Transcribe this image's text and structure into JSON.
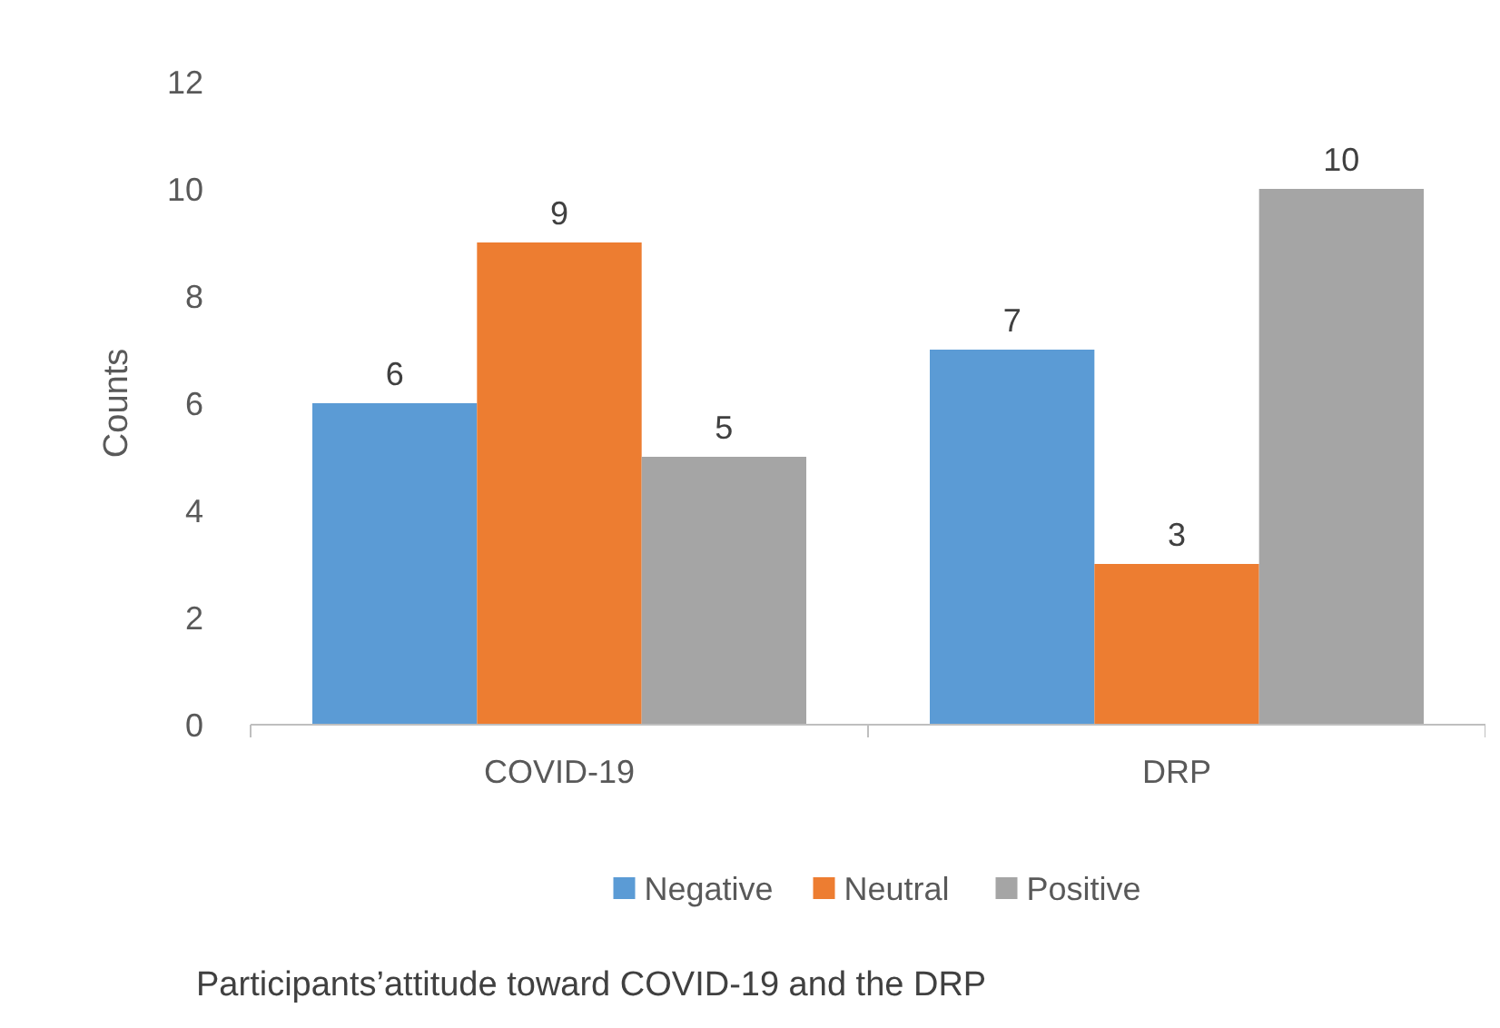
{
  "chart_data": {
    "type": "bar",
    "ylabel": "Counts",
    "categories": [
      "COVID-19",
      "DRP"
    ],
    "series": [
      {
        "name": "Negative",
        "color": "#5b9bd5",
        "values": [
          6,
          7
        ]
      },
      {
        "name": "Neutral",
        "color": "#ed7d31",
        "values": [
          9,
          3
        ]
      },
      {
        "name": "Positive",
        "color": "#a5a5a5",
        "values": [
          5,
          10
        ]
      }
    ],
    "ylim": [
      0,
      12
    ],
    "yticks": [
      0,
      2,
      4,
      6,
      8,
      10,
      12
    ],
    "grid": false,
    "legend": "bottom",
    "data_labels": true,
    "annotations": [
      "Participants’attitude toward COVID-19 and the DRP"
    ]
  }
}
